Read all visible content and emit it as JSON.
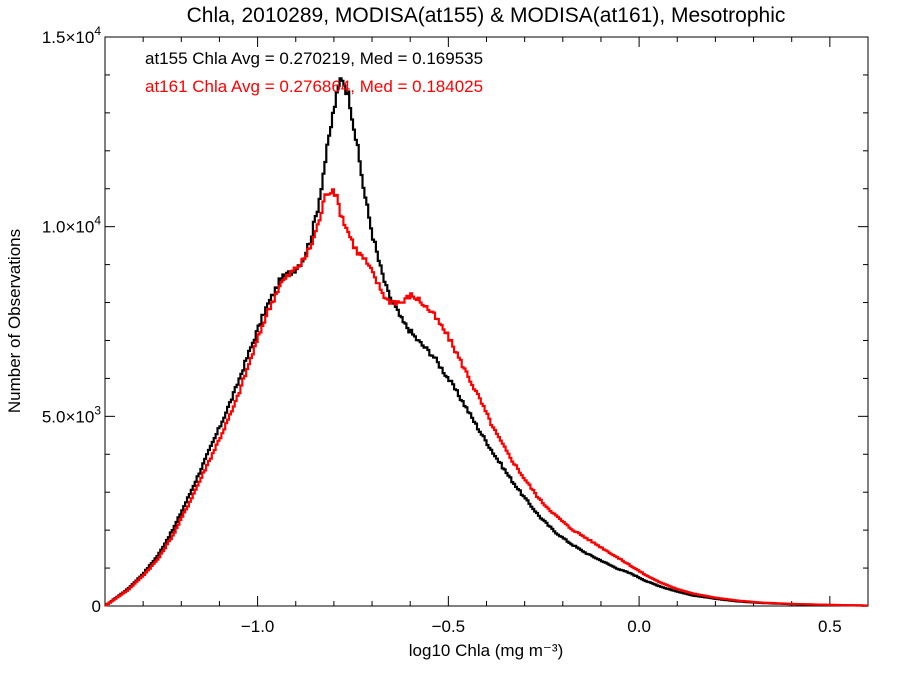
{
  "chart_data": {
    "type": "histogram-step",
    "title": "Chla, 2010289, MODISA(at155) & MODISA(at161), Mesotrophic",
    "xlabel": "log10 Chla (mg m⁻³)",
    "ylabel": "Number of Observations",
    "xlim": [
      -1.4,
      0.6
    ],
    "ylim": [
      0,
      15000
    ],
    "x_ticks": [
      -1.0,
      -0.5,
      0.0,
      0.5
    ],
    "x_tick_labels": [
      "−1.0",
      "−0.5",
      "0.0",
      "0.5"
    ],
    "y_ticks": [
      0,
      5000,
      10000,
      15000
    ],
    "y_tick_labels": [
      {
        "mant": "0",
        "exp": ""
      },
      {
        "mant": "5.0×10",
        "exp": "3"
      },
      {
        "mant": "1.0×10",
        "exp": "4"
      },
      {
        "mant": "1.5×10",
        "exp": "4"
      }
    ],
    "grid": false,
    "annotations": [
      {
        "text": "at155 Chla Avg = 0.270219, Med = 0.169535",
        "color": "#000000"
      },
      {
        "text": "at161 Chla Avg = 0.276864, Med = 0.184025",
        "color": "#ff0000"
      }
    ],
    "series": [
      {
        "name": "at155",
        "color": "#000000",
        "points": [
          [
            -1.4,
            0
          ],
          [
            -1.38,
            150
          ],
          [
            -1.34,
            450
          ],
          [
            -1.3,
            850
          ],
          [
            -1.26,
            1350
          ],
          [
            -1.22,
            2050
          ],
          [
            -1.18,
            2900
          ],
          [
            -1.14,
            3800
          ],
          [
            -1.1,
            4700
          ],
          [
            -1.06,
            5650
          ],
          [
            -1.02,
            6750
          ],
          [
            -0.98,
            7800
          ],
          [
            -0.94,
            8600
          ],
          [
            -0.9,
            8900
          ],
          [
            -0.88,
            9150
          ],
          [
            -0.86,
            9700
          ],
          [
            -0.84,
            10600
          ],
          [
            -0.82,
            11900
          ],
          [
            -0.8,
            13100
          ],
          [
            -0.78,
            14000
          ],
          [
            -0.76,
            13400
          ],
          [
            -0.74,
            12200
          ],
          [
            -0.72,
            10900
          ],
          [
            -0.7,
            9850
          ],
          [
            -0.68,
            9000
          ],
          [
            -0.66,
            8300
          ],
          [
            -0.62,
            7500
          ],
          [
            -0.58,
            7000
          ],
          [
            -0.54,
            6600
          ],
          [
            -0.5,
            6000
          ],
          [
            -0.46,
            5350
          ],
          [
            -0.42,
            4650
          ],
          [
            -0.38,
            4000
          ],
          [
            -0.34,
            3400
          ],
          [
            -0.3,
            2850
          ],
          [
            -0.26,
            2350
          ],
          [
            -0.22,
            1950
          ],
          [
            -0.18,
            1650
          ],
          [
            -0.14,
            1400
          ],
          [
            -0.1,
            1200
          ],
          [
            -0.06,
            1000
          ],
          [
            -0.02,
            850
          ],
          [
            0.02,
            650
          ],
          [
            0.06,
            500
          ],
          [
            0.1,
            380
          ],
          [
            0.14,
            280
          ],
          [
            0.2,
            190
          ],
          [
            0.26,
            120
          ],
          [
            0.32,
            80
          ],
          [
            0.4,
            50
          ],
          [
            0.5,
            25
          ],
          [
            0.6,
            10
          ]
        ]
      },
      {
        "name": "at161",
        "color": "#ff0000",
        "points": [
          [
            -1.4,
            0
          ],
          [
            -1.38,
            140
          ],
          [
            -1.34,
            420
          ],
          [
            -1.3,
            800
          ],
          [
            -1.26,
            1250
          ],
          [
            -1.22,
            1900
          ],
          [
            -1.18,
            2700
          ],
          [
            -1.14,
            3550
          ],
          [
            -1.1,
            4400
          ],
          [
            -1.06,
            5300
          ],
          [
            -1.02,
            6450
          ],
          [
            -0.98,
            7600
          ],
          [
            -0.94,
            8500
          ],
          [
            -0.9,
            8900
          ],
          [
            -0.88,
            9100
          ],
          [
            -0.86,
            9500
          ],
          [
            -0.84,
            10100
          ],
          [
            -0.82,
            10900
          ],
          [
            -0.8,
            11000
          ],
          [
            -0.78,
            10300
          ],
          [
            -0.76,
            9800
          ],
          [
            -0.74,
            9350
          ],
          [
            -0.72,
            9150
          ],
          [
            -0.7,
            8800
          ],
          [
            -0.68,
            8400
          ],
          [
            -0.66,
            8050
          ],
          [
            -0.62,
            8000
          ],
          [
            -0.6,
            8200
          ],
          [
            -0.58,
            8100
          ],
          [
            -0.54,
            7700
          ],
          [
            -0.5,
            7100
          ],
          [
            -0.46,
            6300
          ],
          [
            -0.42,
            5500
          ],
          [
            -0.38,
            4650
          ],
          [
            -0.34,
            3950
          ],
          [
            -0.3,
            3350
          ],
          [
            -0.26,
            2800
          ],
          [
            -0.22,
            2400
          ],
          [
            -0.18,
            2050
          ],
          [
            -0.14,
            1800
          ],
          [
            -0.1,
            1550
          ],
          [
            -0.06,
            1300
          ],
          [
            -0.02,
            1050
          ],
          [
            0.02,
            800
          ],
          [
            0.06,
            600
          ],
          [
            0.1,
            450
          ],
          [
            0.14,
            330
          ],
          [
            0.2,
            220
          ],
          [
            0.26,
            140
          ],
          [
            0.32,
            90
          ],
          [
            0.4,
            55
          ],
          [
            0.5,
            30
          ],
          [
            0.6,
            12
          ]
        ]
      }
    ]
  }
}
